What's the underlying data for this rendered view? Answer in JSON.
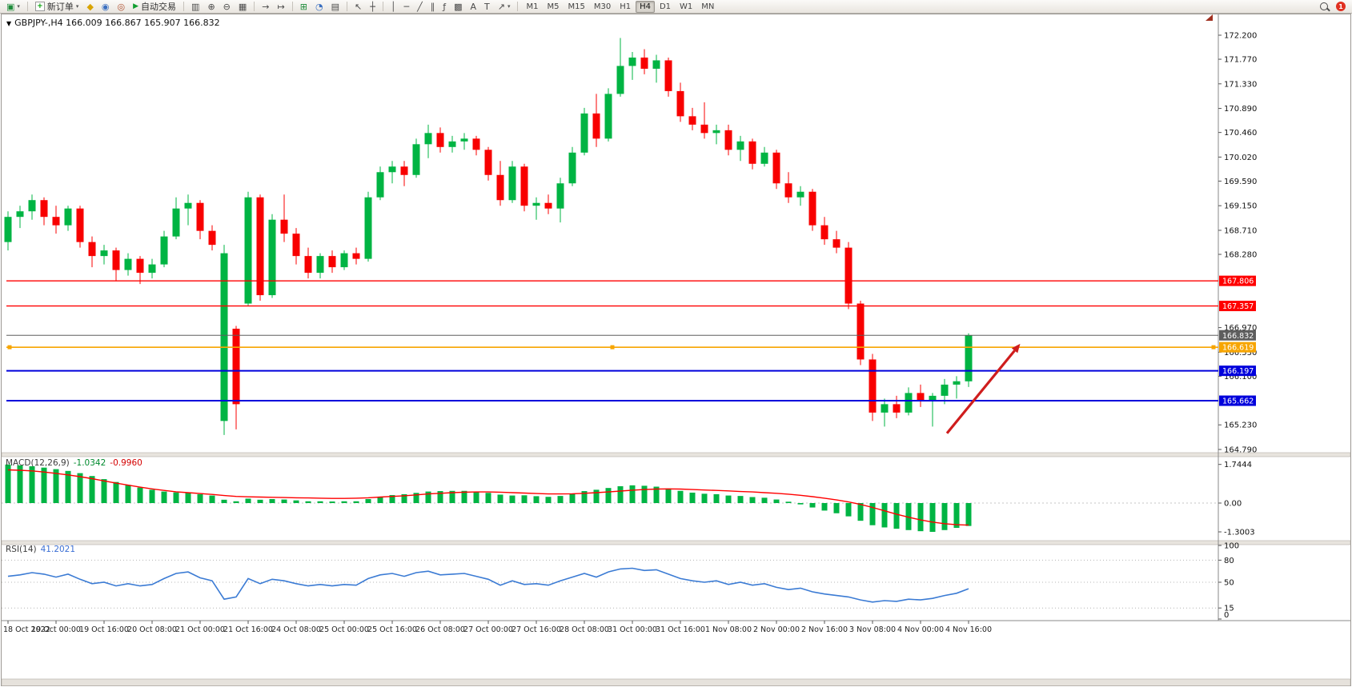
{
  "toolbar": {
    "new_order_label": "新订单",
    "autotrading_label": "自动交易",
    "timeframes": [
      "M1",
      "M5",
      "M15",
      "M30",
      "H1",
      "H4",
      "D1",
      "W1",
      "MN"
    ],
    "active_timeframe": "H4",
    "notification_count": "1",
    "icons": {
      "new_chart": "▣",
      "caret": "▾",
      "new_order": "+",
      "script": "◆",
      "community": "◉",
      "alerts": "◎",
      "autotrading_play": "▶",
      "bar_chart": "▥",
      "zoom_in": "⊕",
      "zoom_out": "⊖",
      "tile_windows": "▦",
      "auto_scroll": "→",
      "chart_shift": "↦",
      "indicators": "⊞",
      "periods": "◔",
      "templates": "▤",
      "cursor": "↖",
      "crosshair": "┼",
      "vertical_line": "│",
      "horizontal_line": "─",
      "trendline": "╱",
      "channel": "∥",
      "fibonacci": "ƒ",
      "shapes": "▩",
      "text": "A",
      "label": "T",
      "arrows": "↗"
    }
  },
  "chart_header": {
    "collapse_icon": "▼",
    "title_line": "GBPJPY-,H4 166.009 166.867 165.907 166.832"
  },
  "chart_data": {
    "type": "candlestick",
    "symbol": "GBPJPY-",
    "period": "H4",
    "current": {
      "open": "166.009",
      "high": "166.867",
      "low": "165.907",
      "close": "166.832"
    },
    "colors": {
      "up": "#00b443",
      "down": "#f80000",
      "macd_hist": "#00b443",
      "macd_signal": "#ff0000",
      "rsi_line": "#3b7bd4",
      "arrow": "#cf1d1d"
    },
    "price_axis": {
      "tick_labels": [
        "172.200",
        "171.770",
        "171.330",
        "170.890",
        "170.460",
        "170.020",
        "169.590",
        "169.150",
        "168.710",
        "168.280",
        "166.970",
        "166.530",
        "166.100",
        "165.230",
        "164.790"
      ],
      "max": 172.2,
      "min": 164.79
    },
    "levels": [
      {
        "price": 167.806,
        "label": "167.806",
        "color": "#ff0000",
        "width": 1.4,
        "handles": false
      },
      {
        "price": 167.357,
        "label": "167.357",
        "color": "#ff0000",
        "width": 1.4,
        "handles": false
      },
      {
        "price": 166.832,
        "label": "166.832",
        "color": "#5e5e5e",
        "width": 1.0,
        "handles": false
      },
      {
        "price": 166.619,
        "label": "166.619",
        "color": "#f7a500",
        "width": 1.6,
        "handles": true
      },
      {
        "price": 166.197,
        "label": "166.197",
        "color": "#0000dc",
        "width": 2.0,
        "handles": false
      },
      {
        "price": 165.662,
        "label": "165.662",
        "color": "#0000dc",
        "width": 2.0,
        "handles": false
      }
    ],
    "times": [
      "18 Oct 2022",
      "19 Oct 00:00",
      "19 Oct 16:00",
      "20 Oct 08:00",
      "21 Oct 00:00",
      "21 Oct 16:00",
      "24 Oct 08:00",
      "25 Oct 00:00",
      "25 Oct 16:00",
      "26 Oct 08:00",
      "27 Oct 00:00",
      "27 Oct 16:00",
      "28 Oct 08:00",
      "31 Oct 00:00",
      "31 Oct 16:00",
      "1 Nov 08:00",
      "2 Nov 00:00",
      "2 Nov 16:00",
      "3 Nov 08:00",
      "4 Nov 00:00",
      "4 Nov 16:00"
    ],
    "candles": [
      [
        168.5,
        169.05,
        168.35,
        168.95
      ],
      [
        168.95,
        169.15,
        168.75,
        169.05
      ],
      [
        169.05,
        169.35,
        168.9,
        169.25
      ],
      [
        169.25,
        169.3,
        168.8,
        168.95
      ],
      [
        168.95,
        169.15,
        168.65,
        168.8
      ],
      [
        168.8,
        169.15,
        168.7,
        169.1
      ],
      [
        169.1,
        169.15,
        168.4,
        168.5
      ],
      [
        168.5,
        168.6,
        168.05,
        168.25
      ],
      [
        168.25,
        168.45,
        168.1,
        168.35
      ],
      [
        168.35,
        168.4,
        167.8,
        168.0
      ],
      [
        168.0,
        168.3,
        167.9,
        168.2
      ],
      [
        168.2,
        168.25,
        167.75,
        167.95
      ],
      [
        167.95,
        168.2,
        167.85,
        168.1
      ],
      [
        168.1,
        168.7,
        168.05,
        168.6
      ],
      [
        168.6,
        169.3,
        168.55,
        169.1
      ],
      [
        169.1,
        169.35,
        168.8,
        169.2
      ],
      [
        169.2,
        169.25,
        168.55,
        168.7
      ],
      [
        168.7,
        168.8,
        168.35,
        168.45
      ],
      [
        165.3,
        168.45,
        165.05,
        168.3
      ],
      [
        166.95,
        167.0,
        165.15,
        165.6
      ],
      [
        167.4,
        169.4,
        167.35,
        169.3
      ],
      [
        169.3,
        169.35,
        167.45,
        167.55
      ],
      [
        167.55,
        169.0,
        167.5,
        168.9
      ],
      [
        168.9,
        169.35,
        168.5,
        168.65
      ],
      [
        168.65,
        168.75,
        168.1,
        168.25
      ],
      [
        168.25,
        168.4,
        167.85,
        167.95
      ],
      [
        167.95,
        168.3,
        167.85,
        168.25
      ],
      [
        168.25,
        168.35,
        167.95,
        168.05
      ],
      [
        168.05,
        168.35,
        168.0,
        168.3
      ],
      [
        168.3,
        168.4,
        168.1,
        168.2
      ],
      [
        168.2,
        169.4,
        168.15,
        169.3
      ],
      [
        169.3,
        169.85,
        169.25,
        169.75
      ],
      [
        169.75,
        169.95,
        169.55,
        169.85
      ],
      [
        169.85,
        169.95,
        169.5,
        169.7
      ],
      [
        169.7,
        170.35,
        169.65,
        170.25
      ],
      [
        170.25,
        170.6,
        170.0,
        170.45
      ],
      [
        170.45,
        170.55,
        170.1,
        170.2
      ],
      [
        170.2,
        170.4,
        170.1,
        170.3
      ],
      [
        170.3,
        170.45,
        170.15,
        170.35
      ],
      [
        170.35,
        170.4,
        170.05,
        170.15
      ],
      [
        170.15,
        170.2,
        169.6,
        169.7
      ],
      [
        169.7,
        169.95,
        169.15,
        169.25
      ],
      [
        169.25,
        169.95,
        169.2,
        169.85
      ],
      [
        169.85,
        169.9,
        169.05,
        169.15
      ],
      [
        169.15,
        169.3,
        168.9,
        169.2
      ],
      [
        169.2,
        169.35,
        169.0,
        169.1
      ],
      [
        169.1,
        169.65,
        168.85,
        169.55
      ],
      [
        169.55,
        170.2,
        169.5,
        170.1
      ],
      [
        170.1,
        170.9,
        170.05,
        170.8
      ],
      [
        170.8,
        171.15,
        170.2,
        170.35
      ],
      [
        170.35,
        171.25,
        170.3,
        171.15
      ],
      [
        171.15,
        172.15,
        171.1,
        171.65
      ],
      [
        171.65,
        171.9,
        171.4,
        171.8
      ],
      [
        171.8,
        171.95,
        171.5,
        171.6
      ],
      [
        171.6,
        171.85,
        171.35,
        171.75
      ],
      [
        171.75,
        171.8,
        171.1,
        171.2
      ],
      [
        171.2,
        171.35,
        170.65,
        170.75
      ],
      [
        170.75,
        170.9,
        170.5,
        170.6
      ],
      [
        170.6,
        171.0,
        170.35,
        170.45
      ],
      [
        170.45,
        170.6,
        170.25,
        170.5
      ],
      [
        170.5,
        170.6,
        170.05,
        170.15
      ],
      [
        170.15,
        170.4,
        169.95,
        170.3
      ],
      [
        170.3,
        170.35,
        169.8,
        169.9
      ],
      [
        169.9,
        170.2,
        169.85,
        170.1
      ],
      [
        170.1,
        170.15,
        169.45,
        169.55
      ],
      [
        169.55,
        169.75,
        169.2,
        169.3
      ],
      [
        169.3,
        169.5,
        169.15,
        169.4
      ],
      [
        169.4,
        169.45,
        168.7,
        168.8
      ],
      [
        168.8,
        168.95,
        168.45,
        168.55
      ],
      [
        168.55,
        168.7,
        168.3,
        168.4
      ],
      [
        168.4,
        168.5,
        167.3,
        167.4
      ],
      [
        167.4,
        167.45,
        166.3,
        166.4
      ],
      [
        166.4,
        166.5,
        165.3,
        165.45
      ],
      [
        165.45,
        165.7,
        165.2,
        165.6
      ],
      [
        165.6,
        165.75,
        165.35,
        165.45
      ],
      [
        165.45,
        165.9,
        165.4,
        165.8
      ],
      [
        165.8,
        165.95,
        165.55,
        165.65
      ],
      [
        165.65,
        165.8,
        165.2,
        165.75
      ],
      [
        165.75,
        166.05,
        165.6,
        165.95
      ],
      [
        165.95,
        166.1,
        165.7,
        166.01
      ],
      [
        166.009,
        166.867,
        165.907,
        166.832
      ]
    ],
    "macd": {
      "name": "MACD(12,26,9)",
      "main_value": "-1.0342",
      "signal_value": "-0.9960",
      "axis_labels": [
        "1.7444",
        "0.00",
        "-1.3003"
      ],
      "histogram": [
        1.74,
        1.7,
        1.66,
        1.6,
        1.53,
        1.45,
        1.35,
        1.22,
        1.08,
        0.95,
        0.82,
        0.7,
        0.6,
        0.52,
        0.48,
        0.45,
        0.4,
        0.34,
        0.15,
        0.08,
        0.2,
        0.15,
        0.18,
        0.16,
        0.12,
        0.08,
        0.08,
        0.07,
        0.08,
        0.08,
        0.18,
        0.28,
        0.36,
        0.4,
        0.46,
        0.52,
        0.54,
        0.55,
        0.55,
        0.52,
        0.46,
        0.38,
        0.34,
        0.35,
        0.31,
        0.28,
        0.32,
        0.42,
        0.54,
        0.6,
        0.68,
        0.76,
        0.8,
        0.78,
        0.74,
        0.66,
        0.55,
        0.47,
        0.42,
        0.4,
        0.34,
        0.32,
        0.27,
        0.24,
        0.16,
        0.06,
        -0.06,
        -0.2,
        -0.34,
        -0.46,
        -0.6,
        -0.8,
        -1.0,
        -1.1,
        -1.16,
        -1.22,
        -1.27,
        -1.3,
        -1.22,
        -1.12,
        -1.0342
      ],
      "signal": [
        1.5,
        1.48,
        1.45,
        1.4,
        1.34,
        1.27,
        1.19,
        1.1,
        1.0,
        0.9,
        0.81,
        0.72,
        0.64,
        0.57,
        0.51,
        0.47,
        0.43,
        0.39,
        0.34,
        0.3,
        0.28,
        0.27,
        0.26,
        0.25,
        0.24,
        0.23,
        0.22,
        0.21,
        0.21,
        0.22,
        0.24,
        0.27,
        0.3,
        0.33,
        0.37,
        0.41,
        0.44,
        0.47,
        0.49,
        0.5,
        0.5,
        0.49,
        0.47,
        0.45,
        0.43,
        0.41,
        0.41,
        0.42,
        0.44,
        0.47,
        0.5,
        0.54,
        0.58,
        0.61,
        0.63,
        0.64,
        0.63,
        0.61,
        0.59,
        0.57,
        0.55,
        0.52,
        0.5,
        0.47,
        0.44,
        0.4,
        0.35,
        0.29,
        0.22,
        0.14,
        0.05,
        -0.06,
        -0.2,
        -0.35,
        -0.5,
        -0.64,
        -0.76,
        -0.86,
        -0.93,
        -0.98,
        -0.996
      ]
    },
    "rsi": {
      "name": "RSI(14)",
      "value": "41.2021",
      "axis_labels": [
        "100",
        "80",
        "50",
        "15",
        "0"
      ],
      "levels": [
        80,
        50,
        15
      ],
      "values": [
        58,
        60,
        63,
        61,
        57,
        61,
        54,
        48,
        50,
        45,
        48,
        45,
        47,
        55,
        62,
        64,
        56,
        52,
        27,
        30,
        55,
        48,
        54,
        52,
        48,
        45,
        47,
        45,
        47,
        46,
        55,
        60,
        62,
        58,
        63,
        65,
        60,
        61,
        62,
        58,
        54,
        46,
        52,
        47,
        48,
        46,
        52,
        57,
        62,
        57,
        64,
        68,
        69,
        66,
        67,
        61,
        55,
        52,
        50,
        52,
        47,
        50,
        46,
        48,
        43,
        40,
        42,
        37,
        34,
        32,
        30,
        26,
        23,
        25,
        24,
        27,
        26,
        28,
        32,
        35,
        41.2
      ]
    },
    "arrow": {
      "from_index": 78.2,
      "from_price": 165.08,
      "to_index": 84.3,
      "to_price": 166.68
    }
  }
}
